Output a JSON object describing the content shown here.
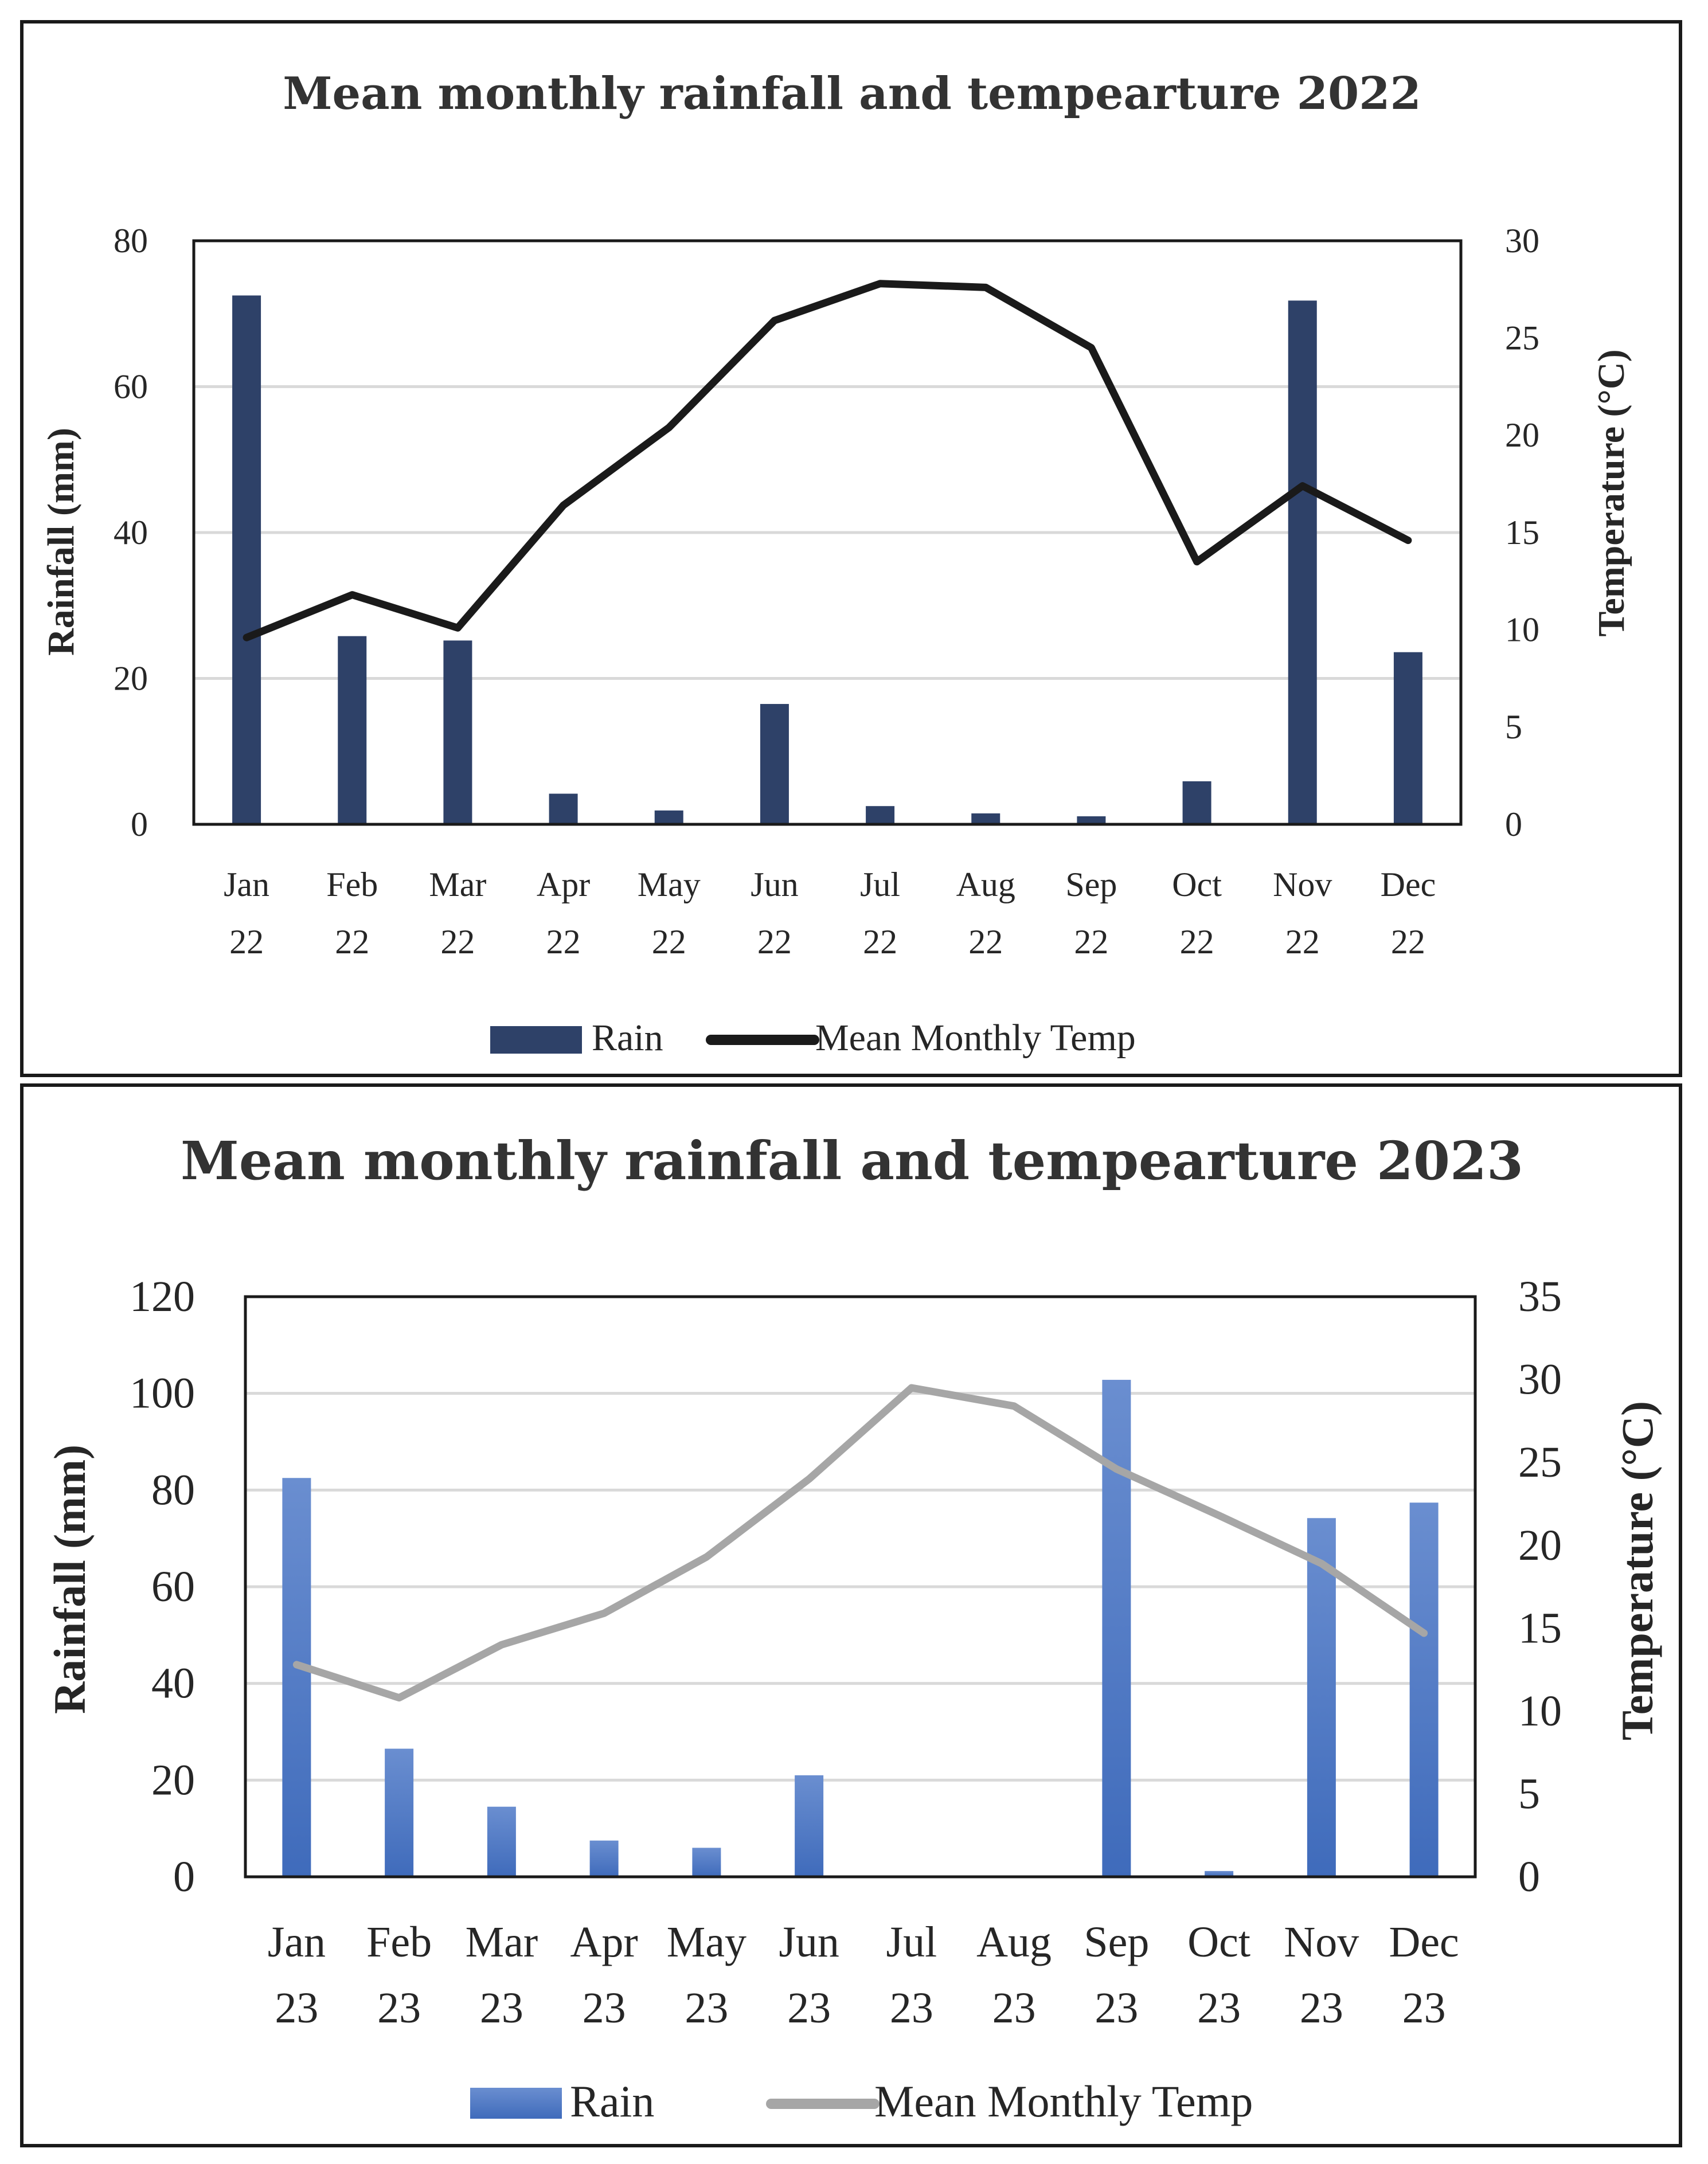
{
  "chart_data": [
    {
      "type": "bar",
      "title": "Mean monthly rainfall and tempearture 2022",
      "categories": [
        [
          "Jan",
          "22"
        ],
        [
          "Feb",
          "22"
        ],
        [
          "Mar",
          "22"
        ],
        [
          "Apr",
          "22"
        ],
        [
          "May",
          "22"
        ],
        [
          "Jun",
          "22"
        ],
        [
          "Jul",
          "22"
        ],
        [
          "Aug",
          "22"
        ],
        [
          "Sep",
          "22"
        ],
        [
          "Oct",
          "22"
        ],
        [
          "Nov",
          "22"
        ],
        [
          "Dec",
          "22"
        ]
      ],
      "ylabel": "Rainfall (mm)",
      "y2label": "Temperature (°C)",
      "ylim": [
        0,
        80
      ],
      "yticks": [
        "0",
        "20",
        "40",
        "60",
        "80"
      ],
      "y2lim": [
        0,
        30
      ],
      "y2ticks": [
        "0",
        "5",
        "10",
        "15",
        "20",
        "25",
        "30"
      ],
      "grid": true,
      "legend_position": "bottom",
      "colors": {
        "bar": "#2e4168",
        "line": "#1a1a1a",
        "grid": "#d9d9d9",
        "frame": "#1a1a1a"
      },
      "series": [
        {
          "name": "Rain",
          "kind": "bar",
          "axis": "left",
          "values": [
            72.5,
            25.8,
            25.2,
            4.2,
            1.9,
            16.5,
            2.5,
            1.5,
            1.1,
            5.9,
            71.8,
            23.6
          ]
        },
        {
          "name": "Mean Monthly Temp",
          "kind": "line",
          "axis": "right",
          "values": [
            9.6,
            11.8,
            10.1,
            16.4,
            20.4,
            25.9,
            27.8,
            27.6,
            24.5,
            13.5,
            17.4,
            14.6
          ]
        }
      ]
    },
    {
      "type": "bar",
      "title": "Mean monthly rainfall and tempearture 2023",
      "categories": [
        [
          "Jan",
          "23"
        ],
        [
          "Feb",
          "23"
        ],
        [
          "Mar",
          "23"
        ],
        [
          "Apr",
          "23"
        ],
        [
          "May",
          "23"
        ],
        [
          "Jun",
          "23"
        ],
        [
          "Jul",
          "23"
        ],
        [
          "Aug",
          "23"
        ],
        [
          "Sep",
          "23"
        ],
        [
          "Oct",
          "23"
        ],
        [
          "Nov",
          "23"
        ],
        [
          "Dec",
          "23"
        ]
      ],
      "ylabel": "Rainfall (mm)",
      "y2label": "Temperature (°C)",
      "ylim": [
        0,
        120
      ],
      "yticks": [
        "0",
        "20",
        "40",
        "60",
        "80",
        "100",
        "120"
      ],
      "y2lim": [
        0,
        35
      ],
      "y2ticks": [
        "0",
        "5",
        "10",
        "15",
        "20",
        "25",
        "30",
        "35"
      ],
      "grid": true,
      "legend_position": "bottom",
      "colors": {
        "bar": "#4f79c2",
        "bar_top": "#6a8ed0",
        "line": "#a6a6a6",
        "grid": "#d9d9d9",
        "frame": "#1a1a1a"
      },
      "series": [
        {
          "name": "Rain",
          "kind": "bar",
          "axis": "left",
          "values": [
            82.5,
            26.5,
            14.5,
            7.5,
            6.0,
            21.0,
            0,
            0,
            102.8,
            1.2,
            74.2,
            77.4
          ]
        },
        {
          "name": "Mean Monthly Temp",
          "kind": "line",
          "axis": "right",
          "values": [
            12.8,
            10.8,
            14.0,
            15.9,
            19.3,
            24.0,
            29.5,
            28.4,
            24.6,
            21.8,
            18.9,
            14.7
          ]
        }
      ]
    }
  ]
}
